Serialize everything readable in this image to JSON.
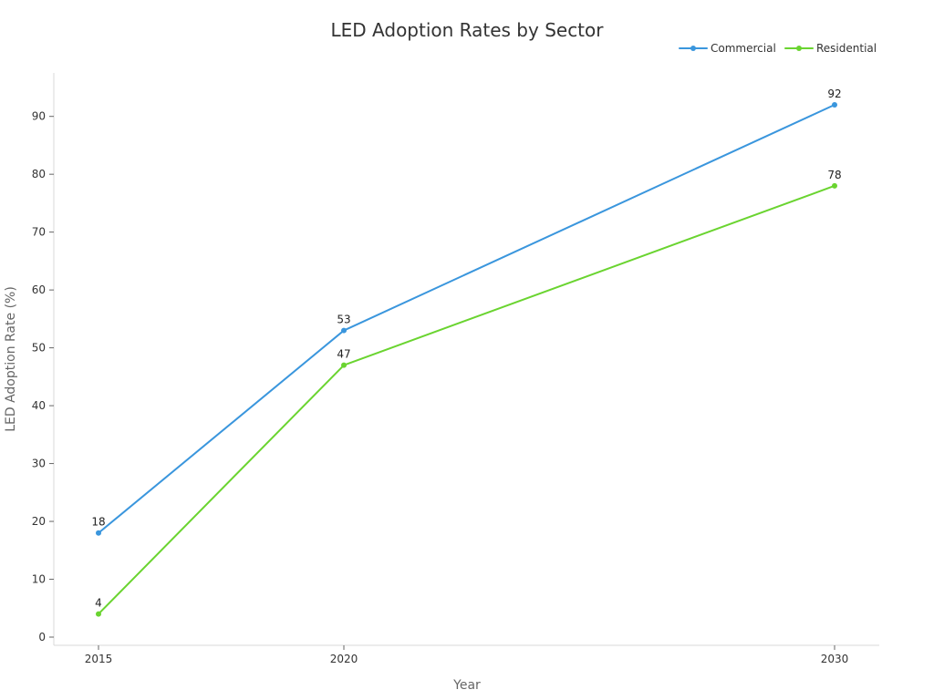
{
  "chart_data": {
    "type": "line",
    "title": "LED Adoption Rates by Sector",
    "xlabel": "Year",
    "ylabel": "LED Adoption Rate (%)",
    "categories": [
      "2015",
      "2020",
      "2030"
    ],
    "x": [
      2015,
      2020,
      2030
    ],
    "ylim": [
      0,
      96
    ],
    "yticks": [
      0,
      10,
      20,
      30,
      40,
      50,
      60,
      70,
      80,
      90
    ],
    "grid": false,
    "legend_position": "top-right",
    "series": [
      {
        "name": "Commercial",
        "values": [
          18,
          53,
          92
        ],
        "color": "#3a96dd"
      },
      {
        "name": "Residential",
        "values": [
          4,
          47,
          78
        ],
        "color": "#6ad430"
      }
    ]
  }
}
